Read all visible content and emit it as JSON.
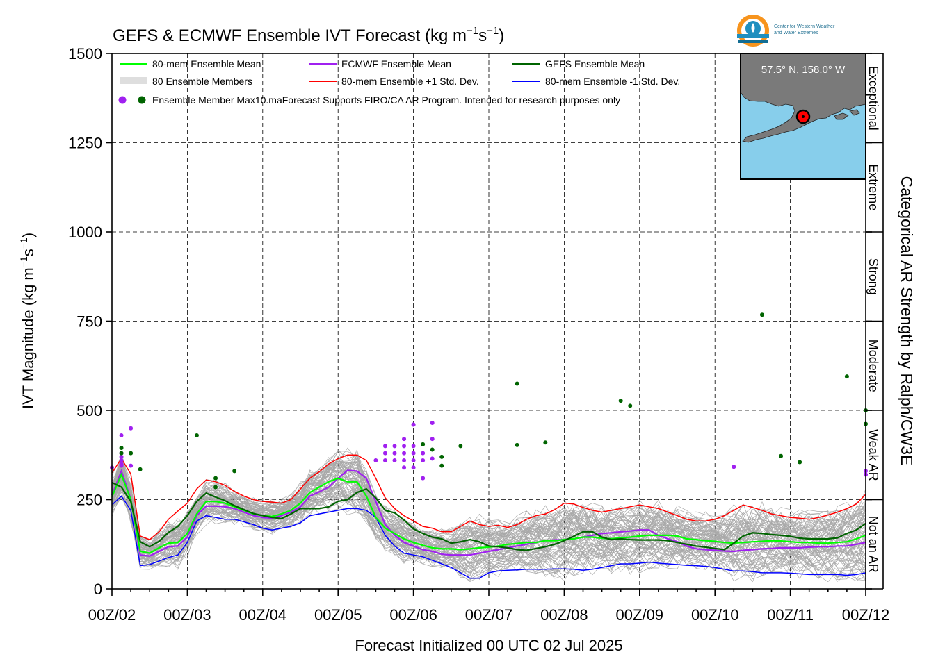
{
  "title": {
    "main": "GEFS & ECMWF Ensemble IVT Forecast (kg m",
    "sup1": "−1",
    "mid": "s",
    "sup2": "−1",
    "end": ")"
  },
  "ylabel": {
    "main": "IVT Magnitude (kg m",
    "sup1": "−1",
    "mid": "s",
    "sup2": "−1",
    "end": ")"
  },
  "xlabel": "Forecast Initialized 00 UTC 02 Jul 2025",
  "right_label": "Categorical AR Strength by Ralph/CW3E",
  "logo_text": {
    "line1": "Center for Western Weather",
    "line2": "and Water Extremes"
  },
  "inset": {
    "location_label": "57.5° N, 158.0° W",
    "land_color": "#7a7a7a",
    "ocean_color": "#87ceeb"
  },
  "legend": {
    "items": [
      {
        "label": "80-mem Ensemble Mean",
        "color": "#00ff00"
      },
      {
        "label": "ECMWF Ensemble Mean",
        "color": "#a020f0"
      },
      {
        "label": "GEFS Ensemble Mean",
        "color": "#006400"
      },
      {
        "label": "80 Ensemble Members",
        "color": "#a9a9a9"
      },
      {
        "label": "80-mem Ensemble +1 Std. Dev.",
        "color": "#ff0000"
      },
      {
        "label": "80-mem Ensemble -1 Std. Dev.",
        "color": "#0000ff"
      }
    ],
    "max_label": "Ensemble Member Max",
    "disclaimer": "10.maForecast Supports FIRO/CA AR Program. Intended for research purposes only"
  },
  "categories": [
    {
      "label": "Not an AR",
      "from": 0,
      "to": 250
    },
    {
      "label": "Weak AR",
      "from": 250,
      "to": 500
    },
    {
      "label": "Moderate",
      "from": 500,
      "to": 750
    },
    {
      "label": "Strong",
      "from": 750,
      "to": 1000
    },
    {
      "label": "Extreme",
      "from": 1000,
      "to": 1250
    },
    {
      "label": "Exceptional",
      "from": 1250,
      "to": 1500
    }
  ],
  "colors": {
    "mean80": "#00ff00",
    "ecmwf": "#a020f0",
    "gefs": "#006400",
    "plus": "#ff0000",
    "minus": "#0000ff",
    "members": "#a9a9a9"
  },
  "chart_data": {
    "type": "line",
    "xlim": [
      0,
      240
    ],
    "ylim": [
      0,
      1500
    ],
    "x_ticks": [
      0,
      24,
      48,
      72,
      96,
      120,
      144,
      168,
      192,
      216,
      240
    ],
    "x_tick_labels": [
      "00Z/02",
      "00Z/03",
      "00Z/04",
      "00Z/05",
      "00Z/06",
      "00Z/07",
      "00Z/08",
      "00Z/09",
      "00Z/10",
      "00Z/11",
      "00Z/12"
    ],
    "y_ticks": [
      0,
      250,
      500,
      750,
      1000,
      1250,
      1500
    ],
    "grid": true,
    "x_hours": [
      0,
      3,
      6,
      9,
      12,
      15,
      18,
      21,
      24,
      27,
      30,
      33,
      36,
      39,
      42,
      45,
      48,
      51,
      54,
      57,
      60,
      63,
      66,
      69,
      72,
      75,
      78,
      81,
      84,
      87,
      90,
      93,
      96,
      99,
      102,
      105,
      108,
      111,
      114,
      117,
      120,
      123,
      126,
      129,
      132,
      135,
      138,
      141,
      144,
      147,
      150,
      153,
      156,
      159,
      162,
      165,
      168,
      171,
      174,
      177,
      180,
      183,
      186,
      189,
      192,
      195,
      198,
      201,
      204,
      207,
      210,
      213,
      216,
      219,
      222,
      225,
      228,
      231,
      234,
      237,
      240
    ],
    "series": [
      {
        "name": "80-mem Ensemble Mean",
        "color": "#00ff00",
        "values": [
          258,
          320,
          250,
          105,
          100,
          115,
          128,
          130,
          155,
          210,
          245,
          245,
          240,
          230,
          220,
          210,
          205,
          203,
          210,
          220,
          240,
          270,
          285,
          300,
          310,
          300,
          300,
          260,
          200,
          170,
          155,
          140,
          130,
          122,
          115,
          112,
          112,
          110,
          112,
          115,
          117,
          120,
          125,
          127,
          130,
          130,
          135,
          135,
          138,
          140,
          145,
          145,
          142,
          140,
          143,
          145,
          148,
          150,
          150,
          150,
          148,
          140,
          138,
          135,
          133,
          130,
          128,
          130,
          132,
          133,
          135,
          134,
          132,
          130,
          130,
          128,
          128,
          130,
          132,
          140,
          150
        ]
      },
      {
        "name": "ECMWF Ensemble Mean",
        "color": "#a020f0",
        "values": [
          262,
          330,
          252,
          95,
          92,
          105,
          118,
          120,
          145,
          205,
          232,
          232,
          230,
          225,
          215,
          205,
          200,
          198,
          205,
          215,
          230,
          260,
          272,
          285,
          310,
          332,
          330,
          310,
          245,
          180,
          150,
          130,
          120,
          110,
          105,
          97,
          95,
          95,
          95,
          100,
          105,
          110,
          115,
          120,
          125,
          130,
          135,
          137,
          138,
          140,
          145,
          150,
          155,
          157,
          160,
          162,
          165,
          165,
          150,
          140,
          132,
          120,
          112,
          110,
          108,
          106,
          105,
          108,
          110,
          112,
          113,
          115,
          115,
          115,
          117,
          118,
          118,
          120,
          120,
          125,
          130
        ]
      },
      {
        "name": "GEFS Ensemble Mean",
        "color": "#006400",
        "values": [
          298,
          285,
          245,
          132,
          118,
          133,
          158,
          175,
          205,
          245,
          268,
          257,
          247,
          233,
          222,
          211,
          205,
          200,
          197,
          210,
          225,
          225,
          225,
          230,
          245,
          250,
          270,
          280,
          255,
          220,
          213,
          193,
          168,
          155,
          145,
          140,
          128,
          132,
          138,
          132,
          120,
          118,
          115,
          110,
          108,
          113,
          118,
          125,
          135,
          147,
          160,
          160,
          145,
          138,
          140,
          138,
          137,
          137,
          137,
          135,
          130,
          125,
          120,
          117,
          113,
          110,
          128,
          148,
          157,
          155,
          152,
          150,
          147,
          142,
          140,
          140,
          140,
          143,
          155,
          165,
          183
        ]
      },
      {
        "name": "80-mem Ensemble +1 Std. Dev.",
        "color": "#ff0000",
        "values": [
          325,
          365,
          322,
          148,
          138,
          160,
          195,
          218,
          240,
          280,
          305,
          300,
          290,
          273,
          260,
          250,
          245,
          243,
          240,
          250,
          280,
          310,
          328,
          350,
          365,
          375,
          375,
          360,
          310,
          255,
          225,
          205,
          190,
          175,
          170,
          160,
          160,
          175,
          190,
          180,
          175,
          178,
          172,
          180,
          195,
          205,
          210,
          222,
          240,
          238,
          228,
          220,
          215,
          220,
          225,
          230,
          235,
          230,
          225,
          215,
          205,
          195,
          190,
          190,
          195,
          205,
          220,
          235,
          228,
          220,
          210,
          205,
          200,
          198,
          195,
          200,
          207,
          215,
          225,
          238,
          265
        ]
      },
      {
        "name": "80-mem Ensemble -1 Std. Dev.",
        "color": "#0000ff",
        "values": [
          235,
          260,
          220,
          65,
          68,
          78,
          88,
          95,
          130,
          190,
          205,
          200,
          195,
          195,
          188,
          180,
          170,
          165,
          170,
          175,
          185,
          205,
          210,
          215,
          220,
          225,
          225,
          220,
          200,
          150,
          120,
          100,
          95,
          90,
          80,
          70,
          60,
          45,
          30,
          30,
          45,
          50,
          52,
          53,
          55,
          55,
          55,
          56,
          56,
          55,
          52,
          55,
          60,
          65,
          70,
          70,
          72,
          75,
          72,
          70,
          68,
          66,
          65,
          63,
          60,
          55,
          50,
          50,
          48,
          45,
          45,
          45,
          44,
          42,
          40,
          40,
          40,
          40,
          38,
          40,
          45
        ]
      }
    ],
    "member_maxima": {
      "ecmwf": [
        [
          0,
          340
        ],
        [
          3,
          430
        ],
        [
          3,
          380
        ],
        [
          3,
          370
        ],
        [
          3,
          360
        ],
        [
          3,
          350
        ],
        [
          3,
          345
        ],
        [
          6,
          345
        ],
        [
          6,
          450
        ],
        [
          84,
          360
        ],
        [
          87,
          360
        ],
        [
          87,
          380
        ],
        [
          87,
          400
        ],
        [
          90,
          400
        ],
        [
          90,
          380
        ],
        [
          90,
          360
        ],
        [
          93,
          420
        ],
        [
          93,
          400
        ],
        [
          93,
          380
        ],
        [
          93,
          360
        ],
        [
          93,
          340
        ],
        [
          96,
          460
        ],
        [
          96,
          460
        ],
        [
          96,
          400
        ],
        [
          96,
          380
        ],
        [
          96,
          360
        ],
        [
          96,
          340
        ],
        [
          99,
          380
        ],
        [
          99,
          360
        ],
        [
          99,
          310
        ],
        [
          102,
          465
        ],
        [
          102,
          420
        ],
        [
          102,
          365
        ],
        [
          198,
          342
        ],
        [
          240,
          330
        ],
        [
          240,
          320
        ]
      ],
      "gefs": [
        [
          3,
          395
        ],
        [
          3,
          380
        ],
        [
          6,
          380
        ],
        [
          9,
          335
        ],
        [
          27,
          430
        ],
        [
          33,
          310
        ],
        [
          33,
          285
        ],
        [
          39,
          330
        ],
        [
          99,
          405
        ],
        [
          102,
          390
        ],
        [
          105,
          370
        ],
        [
          105,
          345
        ],
        [
          111,
          400
        ],
        [
          129,
          575
        ],
        [
          129,
          403
        ],
        [
          138,
          410
        ],
        [
          162,
          527
        ],
        [
          165,
          513
        ],
        [
          207,
          768
        ],
        [
          213,
          372
        ],
        [
          219,
          355
        ],
        [
          234,
          595
        ],
        [
          240,
          500
        ],
        [
          240,
          462
        ]
      ]
    }
  }
}
